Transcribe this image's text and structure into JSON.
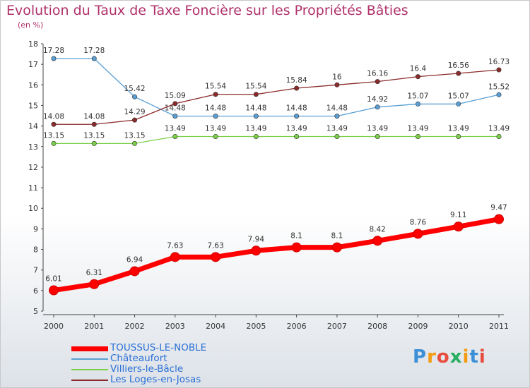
{
  "chart_data": {
    "type": "line",
    "title": "Evolution du Taux de Taxe Foncière sur les Propriétés Bâties",
    "unit_label": "(en %)",
    "x": [
      "2000",
      "2001",
      "2002",
      "2003",
      "2004",
      "2005",
      "2006",
      "2007",
      "2008",
      "2009",
      "2010",
      "2011"
    ],
    "ylim": [
      5,
      18
    ],
    "yticks": [
      5,
      6,
      7,
      8,
      9,
      10,
      11,
      12,
      13,
      14,
      15,
      16,
      17,
      18
    ],
    "grid": false,
    "legend_position": "bottom-left",
    "series": [
      {
        "name": "TOUSSUS-LE-NOBLE",
        "color": "#ff0000",
        "values": [
          6.01,
          6.31,
          6.94,
          7.63,
          7.63,
          7.94,
          8.1,
          8.1,
          8.42,
          8.76,
          9.11,
          9.47
        ],
        "labels": [
          "6.01",
          "6.31",
          "6.94",
          "7.63",
          "7.63",
          "7.94",
          "8.1",
          "8.1",
          "8.42",
          "8.76",
          "9.11",
          "9.47"
        ]
      },
      {
        "name": "Châteaufort",
        "color": "#5a9fd4",
        "values": [
          17.28,
          17.28,
          15.42,
          14.48,
          14.48,
          14.48,
          14.48,
          14.48,
          14.92,
          15.07,
          15.07,
          15.52
        ],
        "labels": [
          "17.28",
          "17.28",
          "15.42",
          "14.48",
          "14.48",
          "14.48",
          "14.48",
          "14.48",
          "14.92",
          "15.07",
          "15.07",
          "15.52"
        ]
      },
      {
        "name": "Villiers-le-Bâcle",
        "color": "#7cd04a",
        "values": [
          13.15,
          13.15,
          13.15,
          13.49,
          13.49,
          13.49,
          13.49,
          13.49,
          13.49,
          13.49,
          13.49,
          13.49
        ],
        "labels": [
          "13.15",
          "13.15",
          "13.15",
          "13.49",
          "13.49",
          "13.49",
          "13.49",
          "13.49",
          "13.49",
          "13.49",
          "13.49",
          "13.49"
        ]
      },
      {
        "name": "Les Loges-en-Josas",
        "color": "#8b2a2a",
        "values": [
          14.08,
          14.08,
          14.29,
          15.09,
          15.54,
          15.54,
          15.84,
          16,
          16.16,
          16.4,
          16.56,
          16.73
        ],
        "labels": [
          "14.08",
          "14.08",
          "14.29",
          "15.09",
          "15.54",
          "15.54",
          "15.84",
          "16",
          "16.16",
          "16.4",
          "16.56",
          "16.73"
        ]
      }
    ]
  },
  "logo": {
    "letters": [
      "P",
      "r",
      "o",
      "x",
      "i",
      "t",
      "i"
    ],
    "colors": [
      "#3d8fd6",
      "#f39c12",
      "#e74c3c",
      "#27ae60",
      "#f39c12",
      "#3d8fd6",
      "#e74c3c"
    ]
  }
}
